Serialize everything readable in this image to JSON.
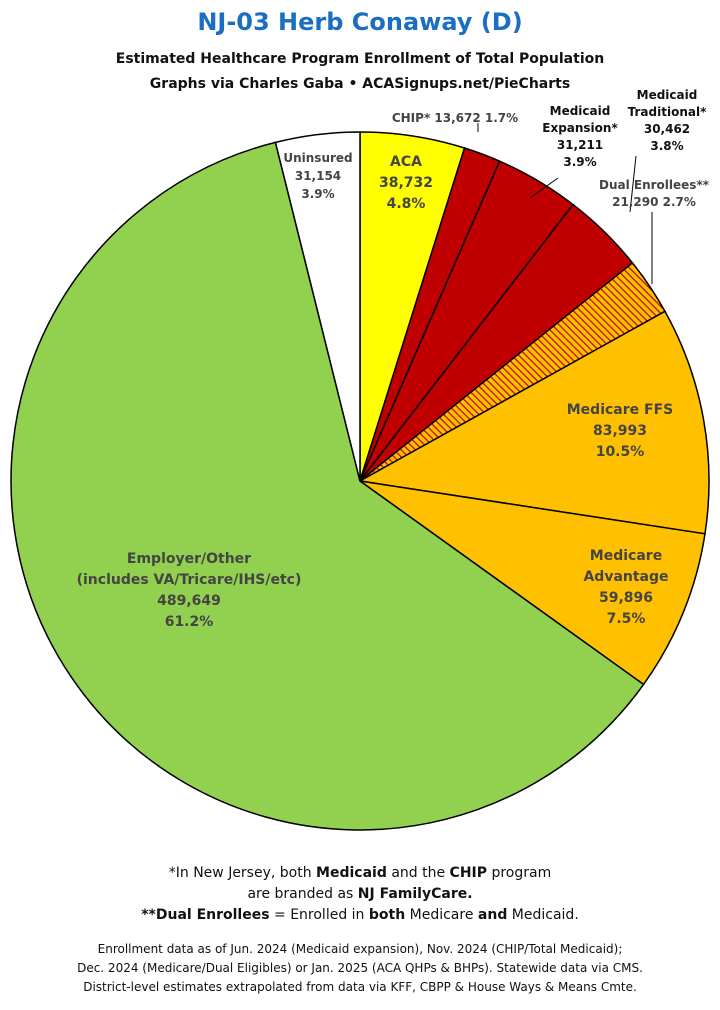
{
  "header": {
    "title": "NJ-03 Herb Conaway (D)",
    "subtitle1": "Estimated Healthcare Program Enrollment of Total Population",
    "subtitle2": "Graphs via Charles Gaba  •  ACASignups.net/PieCharts"
  },
  "chart_data": {
    "type": "pie",
    "title": "NJ-03 Herb Conaway (D)",
    "slices": [
      {
        "name": "ACA",
        "value": 38732,
        "pct": "4.8%",
        "color": "#ffff00",
        "label_lines": [
          "ACA",
          "38,732",
          "4.8%"
        ]
      },
      {
        "name": "CHIP*",
        "value": 13672,
        "pct": "1.7%",
        "color": "#c00000",
        "label_lines": [
          "CHIP* 13,672 1.7%"
        ]
      },
      {
        "name": "Medicaid Expansion*",
        "value": 31211,
        "pct": "3.9%",
        "color": "#c00000",
        "label_lines": [
          "Medicaid",
          "Expansion*",
          "31,211",
          "3.9%"
        ]
      },
      {
        "name": "Medicaid Traditional*",
        "value": 30462,
        "pct": "3.8%",
        "color": "#c00000",
        "label_lines": [
          "Medicaid",
          "Traditional*",
          "30,462",
          "3.8%"
        ]
      },
      {
        "name": "Dual Enrollees**",
        "value": 21290,
        "pct": "2.7%",
        "color": "#ffc000",
        "pattern": "hatched",
        "label_lines": [
          "Dual Enrollees**",
          "21,290 2.7%"
        ]
      },
      {
        "name": "Medicare FFS",
        "value": 83993,
        "pct": "10.5%",
        "color": "#ffc000",
        "label_lines": [
          "Medicare FFS",
          "83,993",
          "10.5%"
        ]
      },
      {
        "name": "Medicare Advantage",
        "value": 59896,
        "pct": "7.5%",
        "color": "#ffc000",
        "label_lines": [
          "Medicare",
          "Advantage",
          "59,896",
          "7.5%"
        ]
      },
      {
        "name": "Employer/Other (includes VA/Tricare/IHS/etc)",
        "value": 489649,
        "pct": "61.2%",
        "color": "#92d050",
        "label_lines": [
          "Employer/Other",
          "(includes VA/Tricare/IHS/etc)",
          "489,649",
          "61.2%"
        ]
      },
      {
        "name": "Uninsured",
        "value": 31154,
        "pct": "3.9%",
        "color": "#ffffff",
        "label_lines": [
          "Uninsured",
          "31,154",
          "3.9%"
        ]
      }
    ]
  },
  "footnotes": {
    "n1_a": "*In New Jersey, both ",
    "n1_b": "Medicaid",
    "n1_c": " and the ",
    "n1_d": "CHIP",
    "n1_e": " program",
    "n2_a": "are branded as ",
    "n2_b": "NJ FamilyCare.",
    "n3_a": "**Dual Enrollees",
    "n3_b": " = Enrolled in ",
    "n3_c": "both",
    "n3_d": " Medicare ",
    "n3_e": "and",
    "n3_f": " Medicaid.",
    "src1": "Enrollment data as of Jun. 2024 (Medicaid expansion), Nov. 2024 (CHIP/Total Medicaid);",
    "src2": "Dec. 2024 (Medicare/Dual Eligibles) or Jan. 2025 (ACA QHPs & BHPs). Statewide data via CMS.",
    "src3": "District-level estimates extrapolated from data via KFF, CBPP & House Ways & Means Cmte."
  }
}
